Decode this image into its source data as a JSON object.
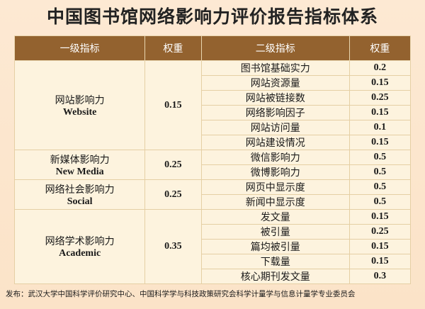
{
  "title": "中国图书馆网络影响力评价报告指标体系",
  "table": {
    "header": [
      "一级指标",
      "权重",
      "二级指标",
      "权重"
    ],
    "groups": [
      {
        "name": "网站影响力",
        "name_en": "Website",
        "weight": 0.15,
        "items": [
          {
            "name": "图书馆基础实力",
            "weight": 0.2
          },
          {
            "name": "网站资源量",
            "weight": 0.15
          },
          {
            "name": "网站被链接数",
            "weight": 0.25
          },
          {
            "name": "网络影响因子",
            "weight": 0.15
          },
          {
            "name": "网站访问量",
            "weight": 0.1
          },
          {
            "name": "网站建设情况",
            "weight": 0.15
          }
        ]
      },
      {
        "name": "新媒体影响力",
        "name_en": "New Media",
        "weight": 0.25,
        "items": [
          {
            "name": "微信影响力",
            "weight": 0.5
          },
          {
            "name": "微博影响力",
            "weight": 0.5
          }
        ]
      },
      {
        "name": "网络社会影响力",
        "name_en": "Social",
        "weight": 0.25,
        "items": [
          {
            "name": "网页中显示度",
            "weight": 0.5
          },
          {
            "name": "新闻中显示度",
            "weight": 0.5
          }
        ]
      },
      {
        "name": "网络学术影响力",
        "name_en": "Academic",
        "weight": 0.35,
        "items": [
          {
            "name": "发文量",
            "weight": 0.15
          },
          {
            "name": "被引量",
            "weight": 0.25
          },
          {
            "name": "篇均被引量",
            "weight": 0.15
          },
          {
            "name": "下载量",
            "weight": 0.15
          },
          {
            "name": "核心期刊发文量",
            "weight": 0.3
          }
        ]
      }
    ]
  },
  "footer": "发布：武汉大学中国科学评价研究中心、中国科学学与科技政策研究会科学计量学与信息计量学专业委员会"
}
